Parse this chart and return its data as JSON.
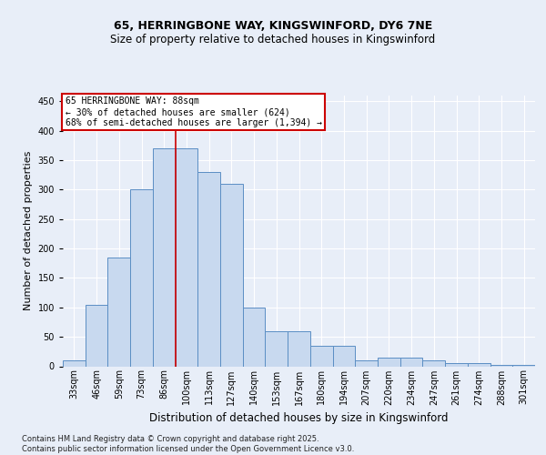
{
  "title1": "65, HERRINGBONE WAY, KINGSWINFORD, DY6 7NE",
  "title2": "Size of property relative to detached houses in Kingswinford",
  "xlabel": "Distribution of detached houses by size in Kingswinford",
  "ylabel": "Number of detached properties",
  "categories": [
    "33sqm",
    "46sqm",
    "59sqm",
    "73sqm",
    "86sqm",
    "100sqm",
    "113sqm",
    "127sqm",
    "140sqm",
    "153sqm",
    "167sqm",
    "180sqm",
    "194sqm",
    "207sqm",
    "220sqm",
    "234sqm",
    "247sqm",
    "261sqm",
    "274sqm",
    "288sqm",
    "301sqm"
  ],
  "values": [
    10,
    105,
    185,
    300,
    370,
    370,
    330,
    310,
    100,
    60,
    60,
    35,
    35,
    10,
    15,
    15,
    10,
    5,
    5,
    3,
    3
  ],
  "bar_color": "#c8d9ef",
  "bar_edge_color": "#5b8ec4",
  "vline_x_idx": 4,
  "vline_color": "#cc0000",
  "annotation_text": "65 HERRINGBONE WAY: 88sqm\n← 30% of detached houses are smaller (624)\n68% of semi-detached houses are larger (1,394) →",
  "annotation_box_color": "#ffffff",
  "annotation_box_edge": "#cc0000",
  "ylim": [
    0,
    460
  ],
  "yticks": [
    0,
    50,
    100,
    150,
    200,
    250,
    300,
    350,
    400,
    450
  ],
  "footer": "Contains HM Land Registry data © Crown copyright and database right 2025.\nContains public sector information licensed under the Open Government Licence v3.0.",
  "background_color": "#e8eef8",
  "plot_bg_color": "#e8eef8",
  "grid_color": "#ffffff",
  "title1_fontsize": 9,
  "title2_fontsize": 8.5,
  "ylabel_fontsize": 8,
  "xlabel_fontsize": 8.5,
  "tick_fontsize": 7,
  "annot_fontsize": 7,
  "footer_fontsize": 6
}
